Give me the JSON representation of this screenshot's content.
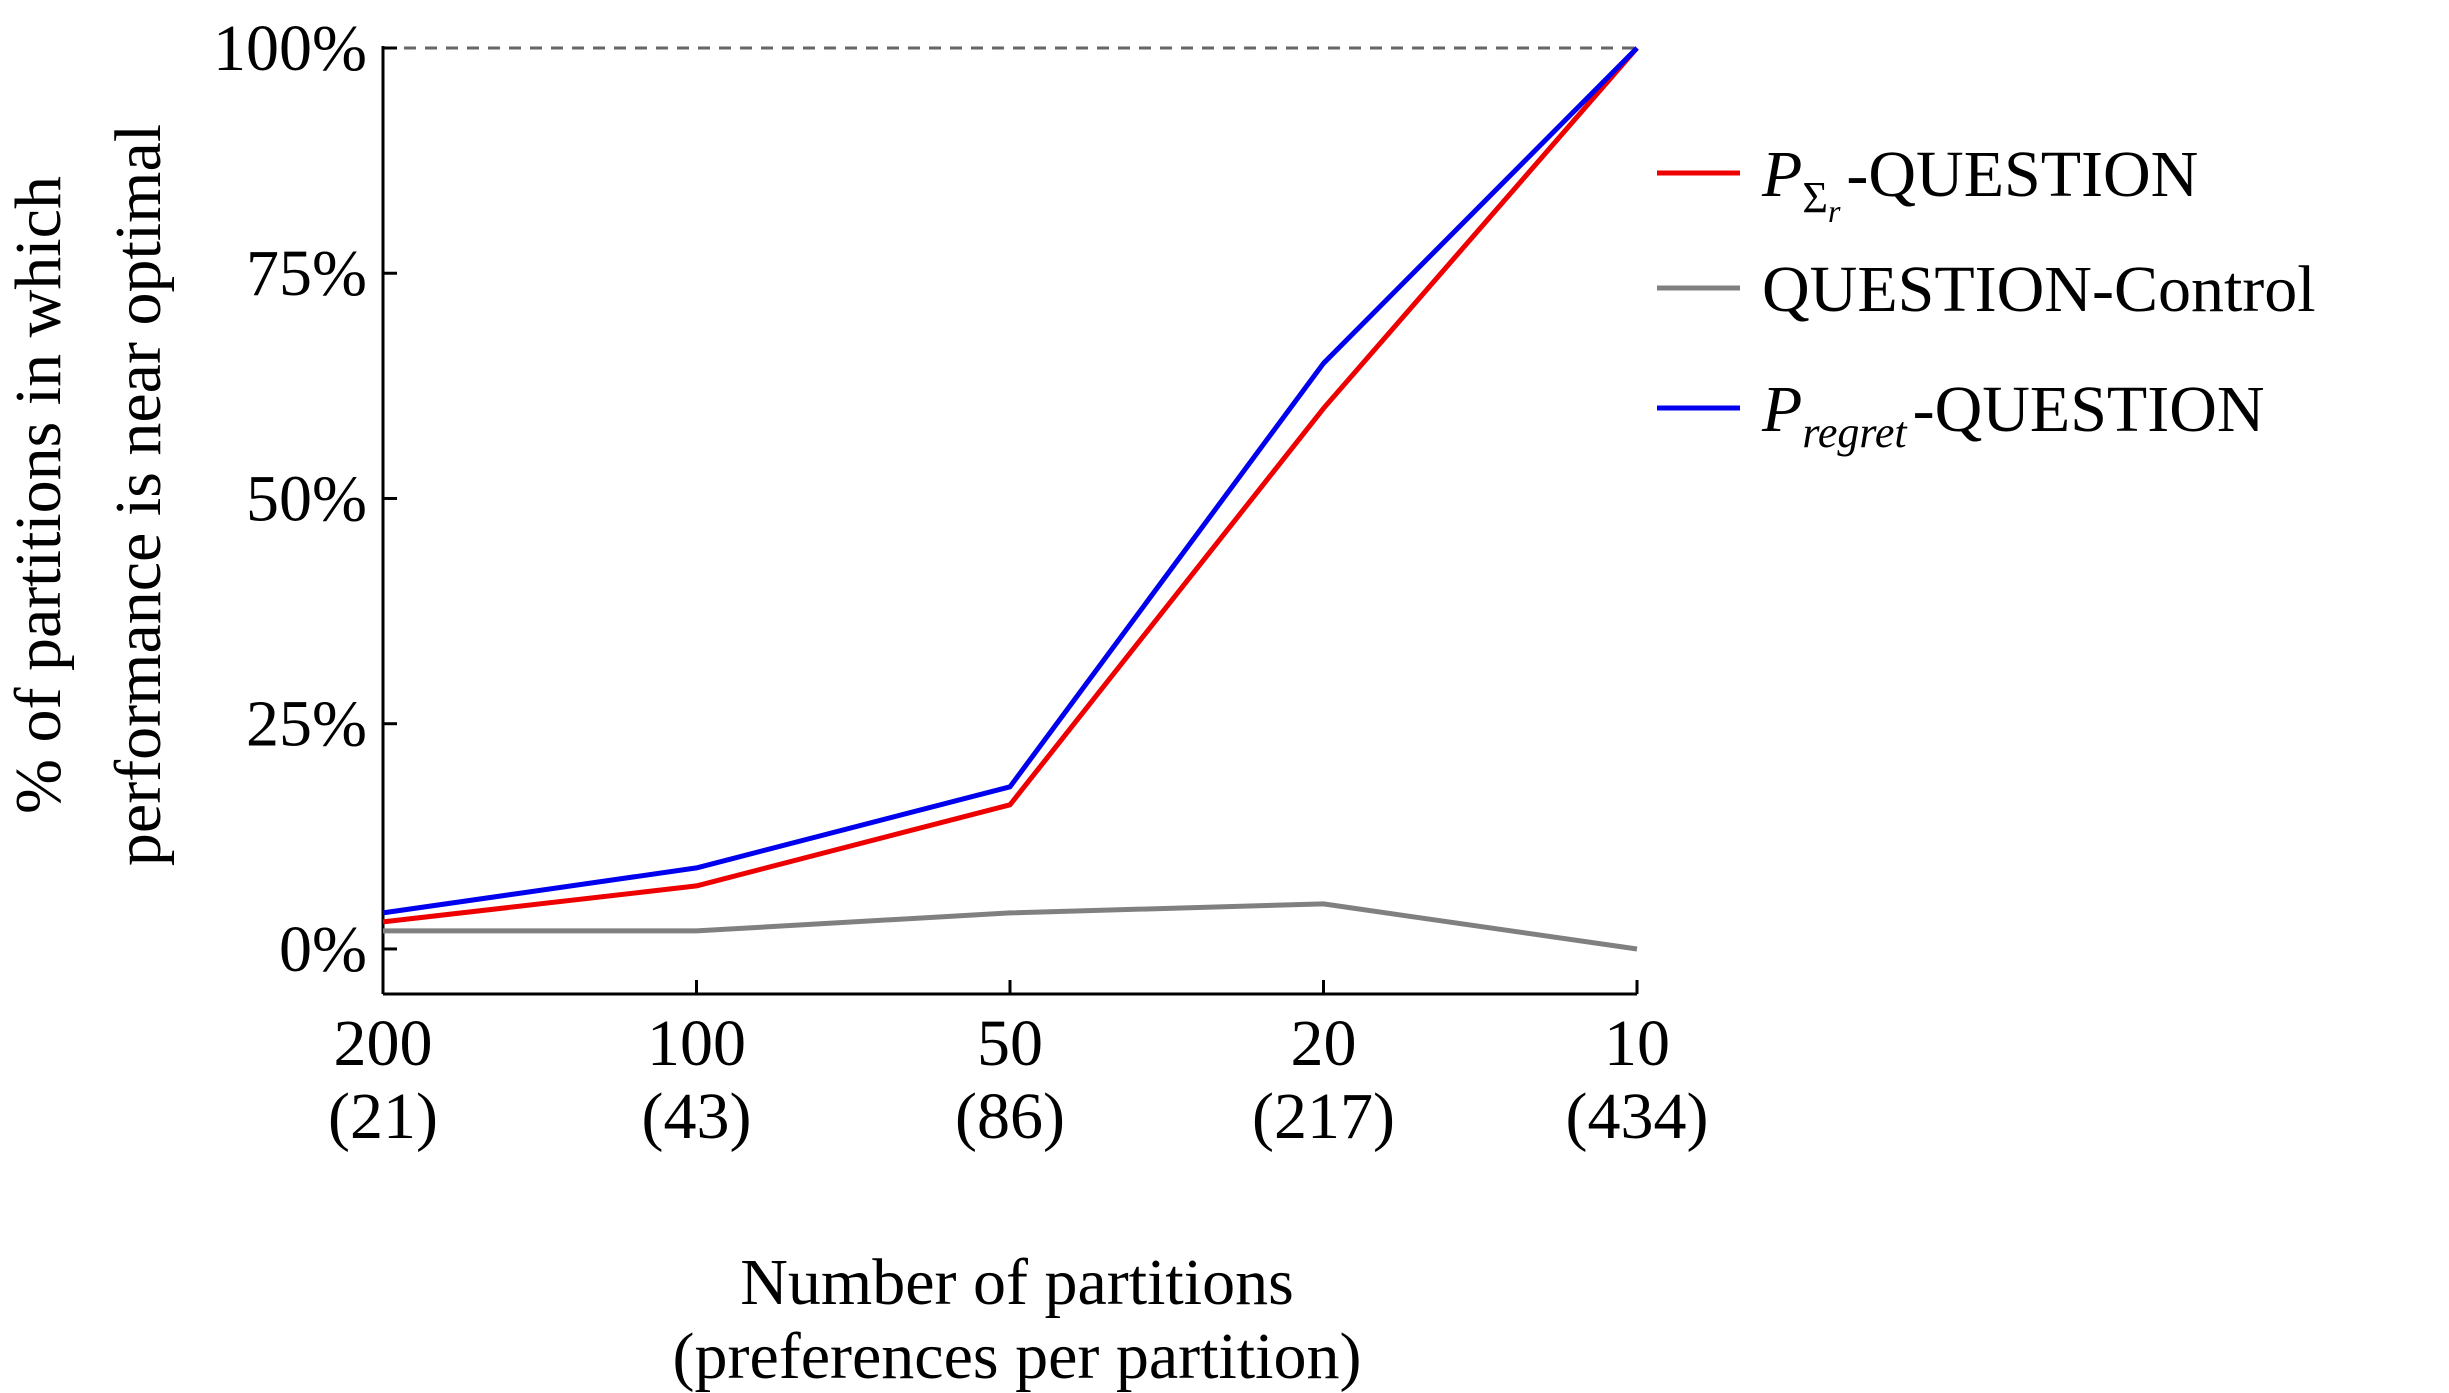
{
  "chart_data": {
    "type": "line",
    "title": "",
    "xlabel_lines": [
      "Number of partitions",
      "(preferences per partition)"
    ],
    "ylabel_lines": [
      "% of partitions in which",
      "performance is near optimal"
    ],
    "categories": [
      {
        "top": "200",
        "bottom": "(21)"
      },
      {
        "top": "100",
        "bottom": "(43)"
      },
      {
        "top": "50",
        "bottom": "(86)"
      },
      {
        "top": "20",
        "bottom": "(217)"
      },
      {
        "top": "10",
        "bottom": "(434)"
      }
    ],
    "ylim": [
      -5,
      100
    ],
    "yticks": [
      {
        "value": 0,
        "label": "0%"
      },
      {
        "value": 25,
        "label": "25%"
      },
      {
        "value": 50,
        "label": "50%"
      },
      {
        "value": 75,
        "label": "75%"
      },
      {
        "value": 100,
        "label": "100%"
      }
    ],
    "reference_line": {
      "value": 100,
      "style": "dashed",
      "color": "#666666"
    },
    "series": [
      {
        "key": "sigma",
        "name_main": "P",
        "name_sub": "Σ",
        "name_subsub": "r",
        "name_suffix": "-QUESTION",
        "color": "#ee0000",
        "values": [
          3,
          7,
          16,
          60,
          100
        ]
      },
      {
        "key": "control",
        "name": "QUESTION-Control",
        "color": "#808080",
        "values": [
          2,
          2,
          4,
          5,
          0
        ]
      },
      {
        "key": "regret",
        "name_main": "P",
        "name_sub": "regret",
        "name_suffix": "-QUESTION",
        "color": "#0000ee",
        "values": [
          4,
          9,
          18,
          65,
          100
        ]
      }
    ],
    "legend_position": "right",
    "grid": false
  }
}
